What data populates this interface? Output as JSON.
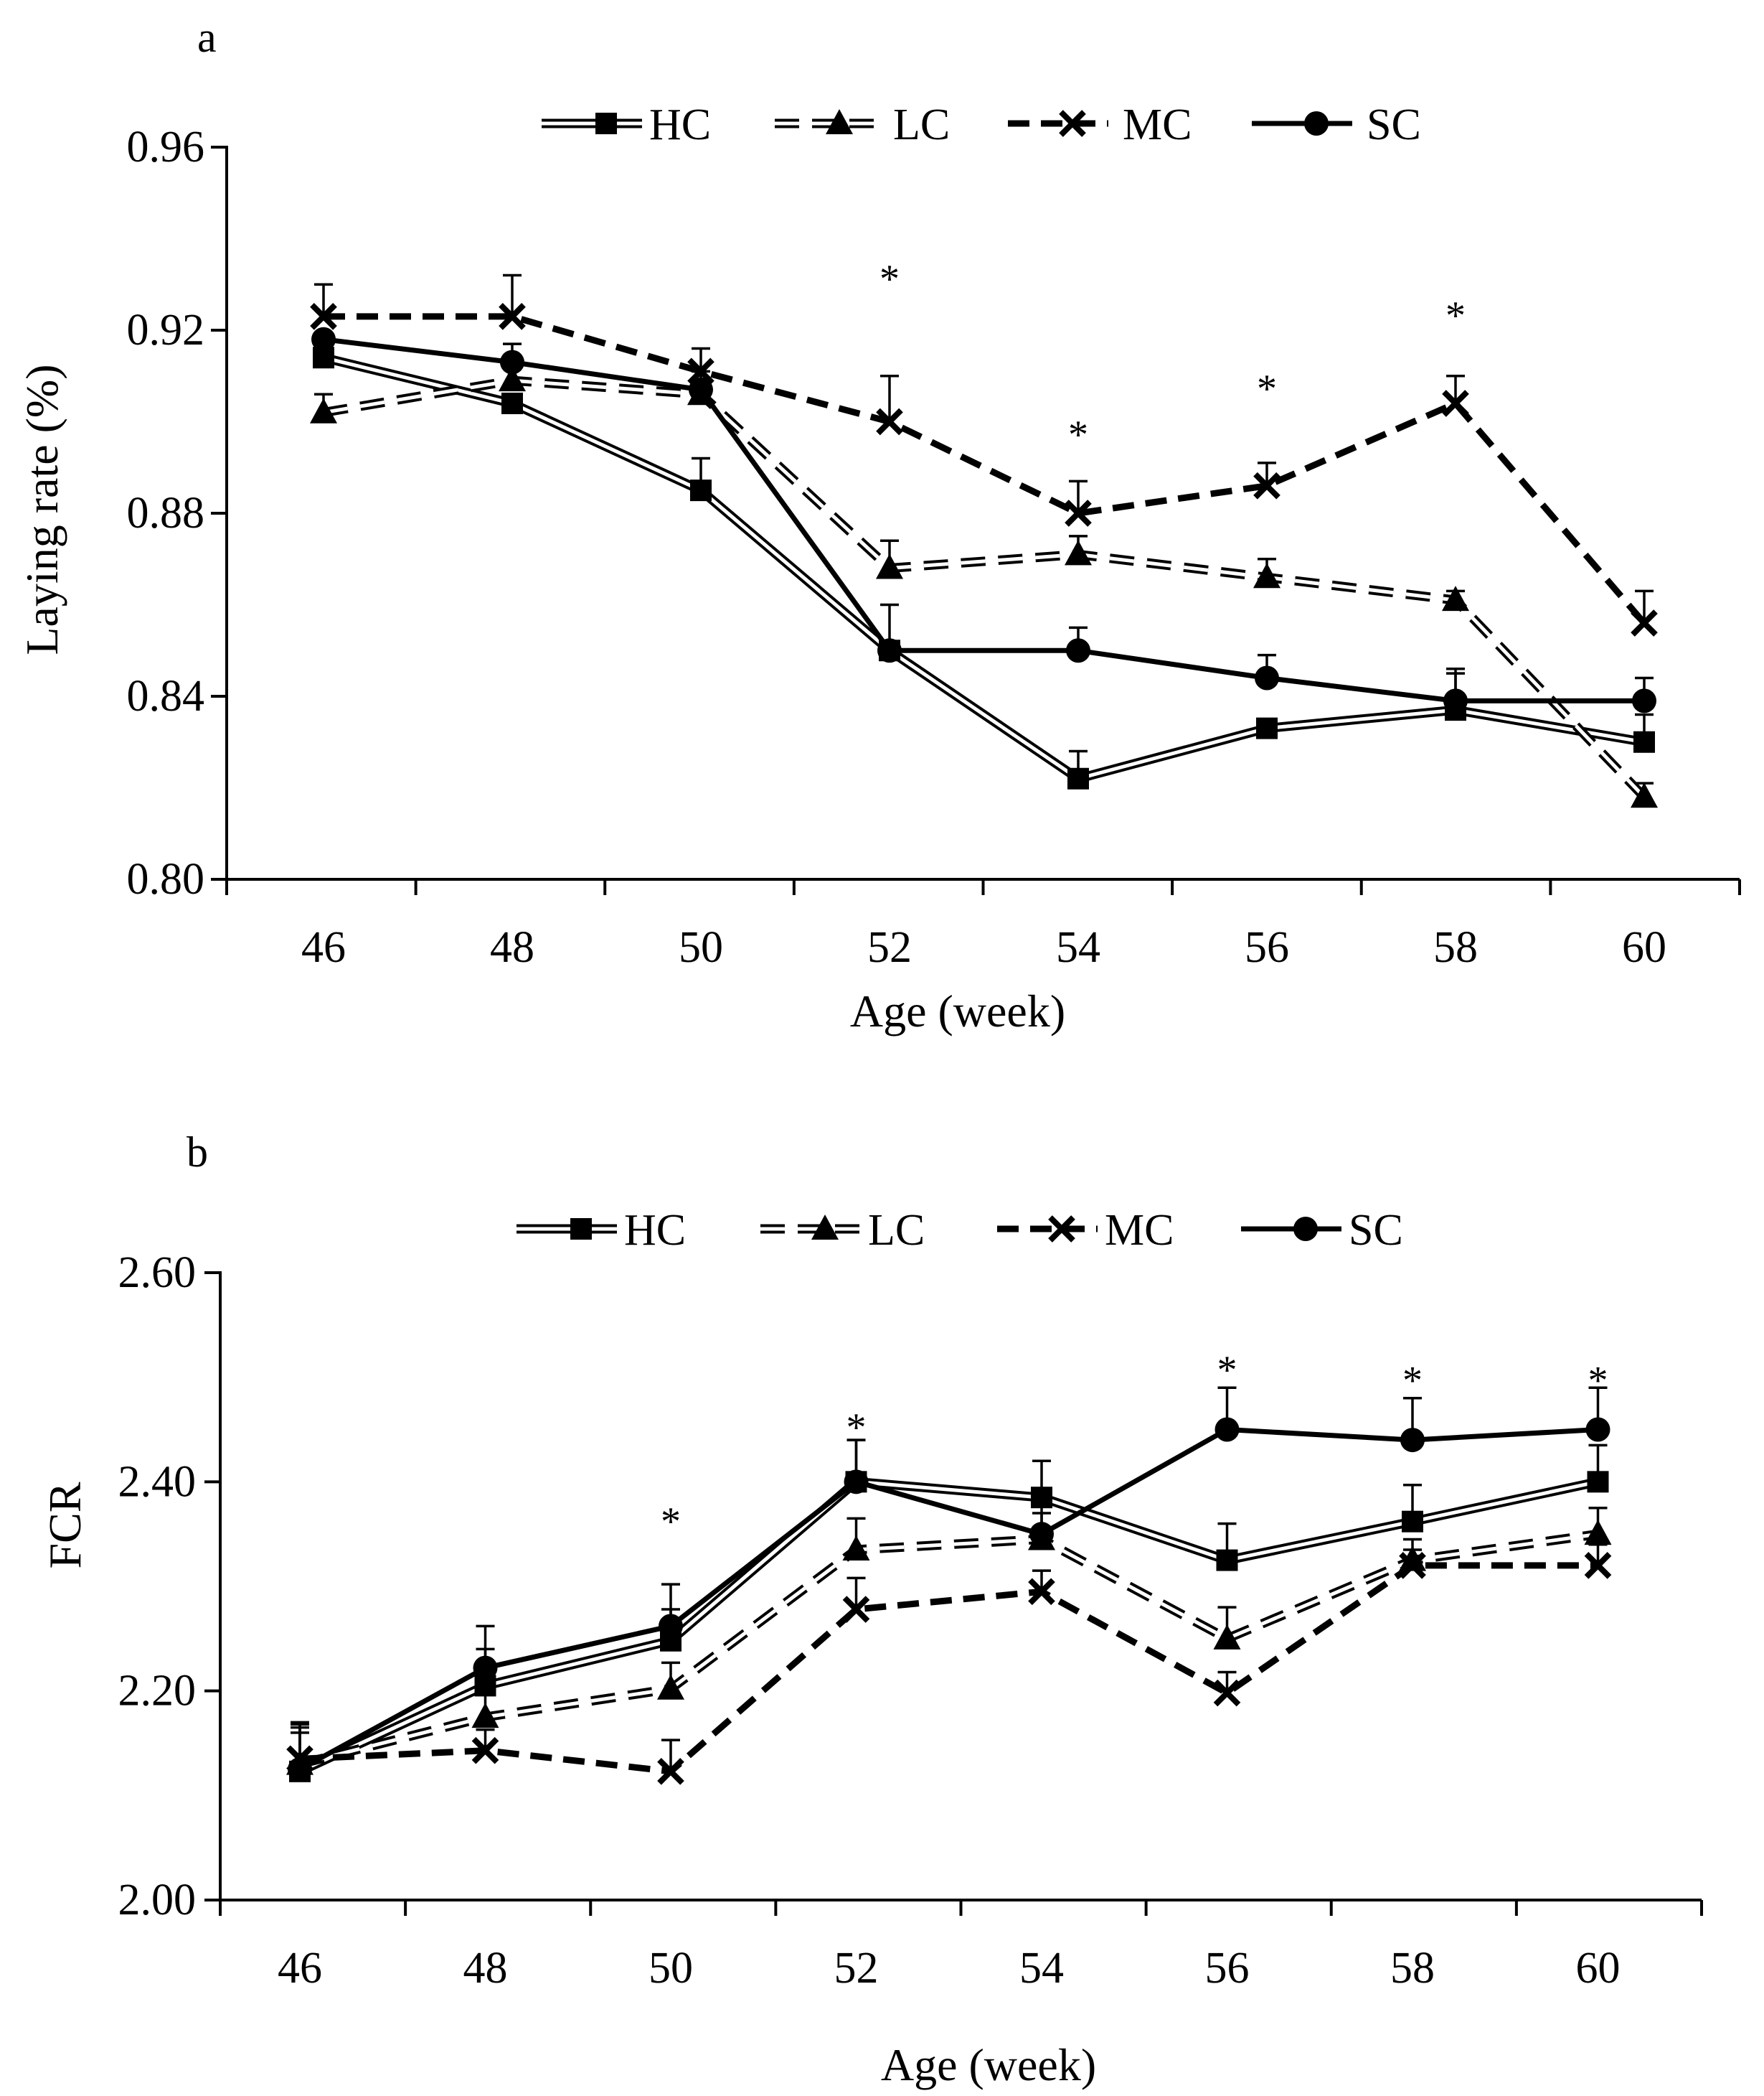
{
  "colors": {
    "ink": "#000000",
    "background": "#ffffff"
  },
  "chart_data": [
    {
      "panel": "a",
      "type": "line",
      "xlabel": "Age (week)",
      "ylabel": "Laying rate (%)",
      "x": [
        46,
        48,
        50,
        52,
        54,
        56,
        58,
        60
      ],
      "x_tick_labels": [
        "46",
        "48",
        "50",
        "52",
        "54",
        "56",
        "58",
        "60"
      ],
      "ylim": [
        0.8,
        0.96
      ],
      "y_ticks": [
        0.8,
        0.84,
        0.88,
        0.92,
        0.96
      ],
      "y_tick_labels": [
        "0.80",
        "0.84",
        "0.88",
        "0.92",
        "0.96"
      ],
      "legend": [
        "HC",
        "LC",
        "MC",
        "SC"
      ],
      "legend_position": "top",
      "series": [
        {
          "name": "HC",
          "marker": "square",
          "line": "double",
          "values": [
            0.914,
            0.904,
            0.885,
            0.85,
            0.822,
            0.833,
            0.837,
            0.83
          ],
          "errors": [
            0.002,
            0.002,
            0.007,
            0.01,
            0.006,
            0.002,
            0.008,
            0.006
          ]
        },
        {
          "name": "LC",
          "marker": "triangle",
          "line": "double-dashed",
          "values": [
            0.902,
            0.909,
            0.906,
            0.868,
            0.871,
            0.866,
            0.861,
            0.818
          ],
          "errors": [
            0.004,
            0.003,
            0.003,
            0.006,
            0.004,
            0.004,
            0.002,
            0.003
          ]
        },
        {
          "name": "MC",
          "marker": "x",
          "line": "dashed",
          "values": [
            0.923,
            0.923,
            0.911,
            0.9,
            0.88,
            0.886,
            0.904,
            0.856
          ],
          "errors": [
            0.007,
            0.009,
            0.005,
            0.01,
            0.007,
            0.005,
            0.006,
            0.007
          ]
        },
        {
          "name": "SC",
          "marker": "circle",
          "line": "solid",
          "values": [
            0.918,
            0.913,
            0.907,
            0.85,
            0.85,
            0.844,
            0.839,
            0.839
          ],
          "errors": [
            0.001,
            0.004,
            0.004,
            0.002,
            0.005,
            0.005,
            0.007,
            0.005
          ]
        }
      ],
      "annotations": [
        {
          "text": "*",
          "x": 52,
          "y": 0.933
        },
        {
          "text": "*",
          "x": 54,
          "y": 0.899
        },
        {
          "text": "*",
          "x": 56,
          "y": 0.909
        },
        {
          "text": "*",
          "x": 58,
          "y": 0.925
        }
      ]
    },
    {
      "panel": "b",
      "type": "line",
      "xlabel": "Age (week)",
      "ylabel": "FCR",
      "x": [
        46,
        48,
        50,
        52,
        54,
        56,
        58,
        60
      ],
      "x_tick_labels": [
        "46",
        "48",
        "50",
        "52",
        "54",
        "56",
        "58",
        "60"
      ],
      "ylim": [
        2.0,
        2.6
      ],
      "y_ticks": [
        2.0,
        2.2,
        2.4,
        2.6
      ],
      "y_tick_labels": [
        "2.00",
        "2.20",
        "2.40",
        "2.60"
      ],
      "legend": [
        "HC",
        "LC",
        "MC",
        "SC"
      ],
      "legend_position": "top",
      "series": [
        {
          "name": "HC",
          "marker": "square",
          "line": "double",
          "values": [
            2.123,
            2.205,
            2.248,
            2.4,
            2.385,
            2.325,
            2.362,
            2.4
          ],
          "errors": [
            0.045,
            0.035,
            0.03,
            0.04,
            0.035,
            0.035,
            0.035,
            0.035
          ]
        },
        {
          "name": "LC",
          "marker": "triangle",
          "line": "double-dashed",
          "values": [
            2.13,
            2.175,
            2.202,
            2.335,
            2.345,
            2.25,
            2.325,
            2.35
          ],
          "errors": [
            0.04,
            0.025,
            0.025,
            0.03,
            0.025,
            0.03,
            0.02,
            0.025
          ]
        },
        {
          "name": "MC",
          "marker": "x",
          "line": "dashed",
          "values": [
            2.135,
            2.143,
            2.123,
            2.278,
            2.295,
            2.198,
            2.32,
            2.32
          ],
          "errors": [
            0.025,
            0.02,
            0.03,
            0.03,
            0.02,
            0.02,
            0.015,
            0.02
          ]
        },
        {
          "name": "SC",
          "marker": "circle",
          "line": "solid",
          "values": [
            2.125,
            2.222,
            2.262,
            2.4,
            2.35,
            2.45,
            2.44,
            2.45
          ],
          "errors": [
            0.04,
            0.04,
            0.04,
            0.04,
            0.035,
            0.04,
            0.04,
            0.04
          ]
        }
      ],
      "annotations": [
        {
          "text": "*",
          "x": 50,
          "y": 2.37
        },
        {
          "text": "*",
          "x": 52,
          "y": 2.46
        },
        {
          "text": "*",
          "x": 56,
          "y": 2.515
        },
        {
          "text": "*",
          "x": 58,
          "y": 2.505
        },
        {
          "text": "*",
          "x": 60,
          "y": 2.505
        }
      ]
    }
  ]
}
